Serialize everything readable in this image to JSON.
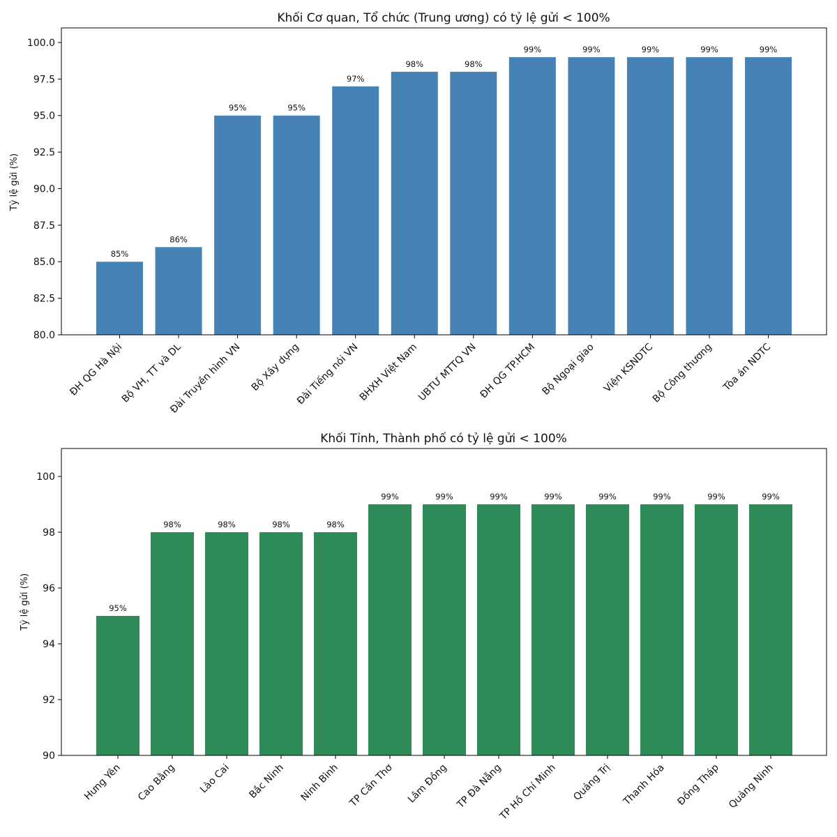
{
  "chart_data": [
    {
      "type": "bar",
      "title": "Khối Cơ quan, Tổ chức (Trung ương) có tỷ lệ gửi < 100%",
      "xlabel": "",
      "ylabel": "Tỷ lệ gửi (%)",
      "ylim": [
        80,
        101
      ],
      "yticks": [
        80.0,
        82.5,
        85.0,
        87.5,
        90.0,
        92.5,
        95.0,
        97.5,
        100.0
      ],
      "ytick_labels": [
        "80.0",
        "82.5",
        "85.0",
        "87.5",
        "90.0",
        "92.5",
        "95.0",
        "97.5",
        "100.0"
      ],
      "color": "#4682b4",
      "categories": [
        "ĐH QG Hà Nội",
        "Bộ VH, TT và DL",
        "Đài Truyền hình VN",
        "Bộ Xây dựng",
        "Đài Tiếng nói VN",
        "BHXH Việt Nam",
        "UBTƯ MTTQ VN",
        "ĐH QG TP.HCM",
        "Bộ Ngoại giao",
        "Viện KSNDTC",
        "Bộ Công thương",
        "Tòa án NDTC"
      ],
      "values": [
        85,
        86,
        95,
        95,
        97,
        98,
        98,
        99,
        99,
        99,
        99,
        99
      ],
      "data_labels": [
        "85%",
        "86%",
        "95%",
        "95%",
        "97%",
        "98%",
        "98%",
        "99%",
        "99%",
        "99%",
        "99%",
        "99%"
      ],
      "grid": false
    },
    {
      "type": "bar",
      "title": "Khối Tỉnh, Thành phố có tỷ lệ gửi < 100%",
      "xlabel": "",
      "ylabel": "Tỷ lệ gửi (%)",
      "ylim": [
        90,
        101
      ],
      "yticks": [
        90,
        92,
        94,
        96,
        98,
        100
      ],
      "ytick_labels": [
        "90",
        "92",
        "94",
        "96",
        "98",
        "100"
      ],
      "color": "#2e8b57",
      "categories": [
        "Hưng Yên",
        "Cao Bằng",
        "Lào Cai",
        "Bắc Ninh",
        "Ninh Bình",
        "TP Cần Thơ",
        "Lâm Đồng",
        "TP Đà Nẵng",
        "TP Hồ Chí Minh",
        "Quảng Trị",
        "Thanh Hóa",
        "Đồng Tháp",
        "Quảng Ninh"
      ],
      "values": [
        95,
        98,
        98,
        98,
        98,
        99,
        99,
        99,
        99,
        99,
        99,
        99,
        99
      ],
      "data_labels": [
        "95%",
        "98%",
        "98%",
        "98%",
        "98%",
        "99%",
        "99%",
        "99%",
        "99%",
        "99%",
        "99%",
        "99%",
        "99%"
      ],
      "grid": false
    }
  ]
}
